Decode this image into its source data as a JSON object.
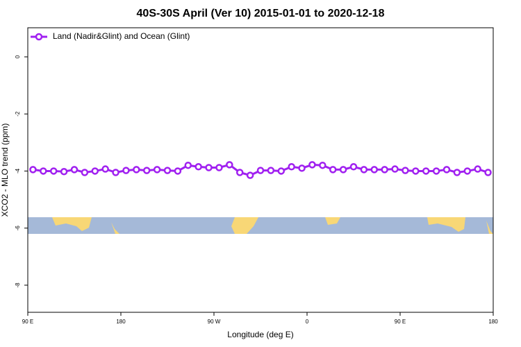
{
  "chart_data": {
    "type": "line",
    "title": "40S-30S April (Ver 10)   2015-01-01 to 2020-12-18",
    "xlabel": "Longitude (deg E)",
    "ylabel": "XCO2 - MLO trend (ppm)",
    "x": [
      95,
      105,
      115,
      125,
      135,
      145,
      155,
      165,
      175,
      185,
      195,
      205,
      215,
      225,
      235,
      245,
      255,
      265,
      275,
      285,
      295,
      305,
      315,
      325,
      335,
      345,
      355,
      365,
      375,
      385,
      395,
      405,
      415,
      425,
      435,
      445,
      455,
      465,
      475,
      485,
      495,
      505,
      515,
      525,
      535
    ],
    "series": [
      {
        "name": "Land (Nadir&Glint) and Ocean (Glint)",
        "color": "#a020f0",
        "values": [
          -3.95,
          -4.0,
          -4.0,
          -4.02,
          -3.95,
          -4.05,
          -4.0,
          -3.93,
          -4.05,
          -3.98,
          -3.95,
          -3.98,
          -3.95,
          -3.98,
          -4.0,
          -3.8,
          -3.85,
          -3.88,
          -3.88,
          -3.78,
          -4.05,
          -4.15,
          -3.98,
          -3.98,
          -4.0,
          -3.85,
          -3.9,
          -3.78,
          -3.8,
          -3.95,
          -3.95,
          -3.85,
          -3.95,
          -3.95,
          -3.95,
          -3.93,
          -3.98,
          -4.0,
          -4.0,
          -4.0,
          -3.95,
          -4.05,
          -4.0,
          -3.93,
          -4.05
        ]
      }
    ],
    "xlim": [
      90,
      540
    ],
    "xticks": [
      {
        "value": 90,
        "label": "90 E"
      },
      {
        "value": 180,
        "label": "180"
      },
      {
        "value": 270,
        "label": "90 W"
      },
      {
        "value": 360,
        "label": "0"
      },
      {
        "value": 450,
        "label": "90 E"
      },
      {
        "value": 540,
        "label": "180"
      }
    ],
    "ylim": [
      -8.95,
      1.02
    ],
    "yticks": [
      0,
      -2,
      -4,
      -6,
      -8
    ],
    "legend": "top-left"
  }
}
